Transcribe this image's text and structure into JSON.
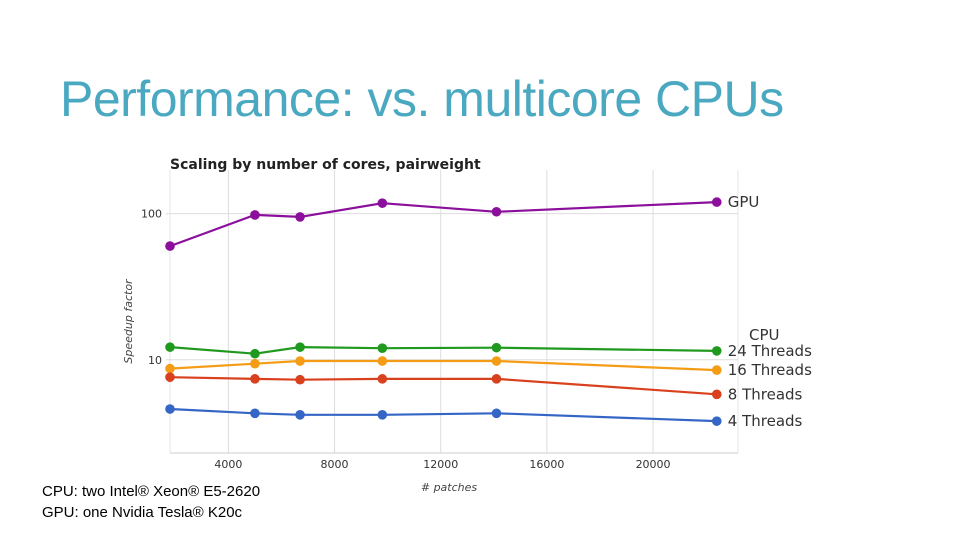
{
  "slide": {
    "title": "Performance: vs. multicore CPUs",
    "footnote_cpu": "CPU: two Intel® Xeon® E5-2620",
    "footnote_gpu": "GPU: one Nvidia Tesla® K20c"
  },
  "chart_data": {
    "type": "line",
    "title": "Scaling by number of cores, pairweight",
    "xlabel": "# patches",
    "ylabel": "Speedup factor",
    "yscale": "log",
    "xlim": [
      1800,
      23200
    ],
    "ylim": [
      2.3,
      170
    ],
    "x_ticks": [
      4000,
      8000,
      12000,
      16000,
      20000
    ],
    "x_tick_labels": [
      "4000",
      "8000",
      "12000",
      "16000",
      "20000"
    ],
    "y_ticks": [
      10,
      100
    ],
    "y_tick_labels": [
      "10",
      "100"
    ],
    "grid": true,
    "legend_group_label": "CPU",
    "legend_placement": "right, at line ends",
    "series": [
      {
        "name": "GPU",
        "color": "#8b0f9c",
        "x": [
          1800,
          5000,
          6700,
          9800,
          14100,
          22400
        ],
        "y": [
          60,
          98,
          95,
          118,
          103,
          120
        ]
      },
      {
        "name": "24 Threads",
        "color": "#1f9a1f",
        "x": [
          1800,
          5000,
          6700,
          9800,
          14100,
          22400
        ],
        "y": [
          12.2,
          11,
          12.2,
          12,
          12.1,
          11.5
        ]
      },
      {
        "name": "16 Threads",
        "color": "#f59c16",
        "x": [
          1800,
          5000,
          6700,
          9800,
          14100,
          22400
        ],
        "y": [
          8.7,
          9.4,
          9.8,
          9.8,
          9.8,
          8.5
        ]
      },
      {
        "name": "8 Threads",
        "color": "#d9401d",
        "x": [
          1800,
          5000,
          6700,
          9800,
          14100,
          22400
        ],
        "y": [
          7.6,
          7.4,
          7.3,
          7.4,
          7.4,
          5.8
        ]
      },
      {
        "name": "4 Threads",
        "color": "#3566c6",
        "x": [
          1800,
          5000,
          6700,
          9800,
          14100,
          22400
        ],
        "y": [
          4.6,
          4.3,
          4.2,
          4.2,
          4.3,
          3.8
        ]
      }
    ]
  }
}
